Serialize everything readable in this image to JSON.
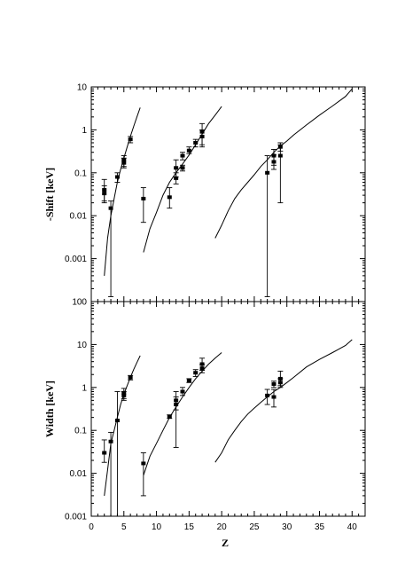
{
  "chart_data": [
    {
      "type": "scatter",
      "title": "",
      "xlabel": "",
      "ylabel": "-Shift  [keV]",
      "yscale": "log",
      "xlim": [
        0,
        42
      ],
      "ylim": [
        0.0001,
        10
      ],
      "ytick_labels": [
        "10",
        "1",
        "0.1",
        "0.01",
        "0.001"
      ],
      "grid": false,
      "curves": [
        {
          "x": [
            2,
            2.5,
            3,
            3.5,
            4,
            4.5,
            5,
            5.5,
            6,
            6.5,
            7,
            7.5
          ],
          "y": [
            0.0004,
            0.003,
            0.01,
            0.025,
            0.06,
            0.12,
            0.22,
            0.4,
            0.7,
            1.2,
            2.0,
            3.3
          ]
        },
        {
          "x": [
            8,
            9,
            10,
            11,
            12,
            13,
            14,
            15,
            16,
            17,
            18,
            19,
            20
          ],
          "y": [
            0.0014,
            0.005,
            0.012,
            0.03,
            0.06,
            0.1,
            0.16,
            0.26,
            0.45,
            0.8,
            1.4,
            2.2,
            3.5
          ]
        },
        {
          "x": [
            19,
            20,
            21,
            22,
            23,
            24,
            25,
            26,
            27,
            28,
            29,
            30,
            31,
            33,
            35,
            37,
            39,
            40
          ],
          "y": [
            0.003,
            0.006,
            0.013,
            0.025,
            0.04,
            0.06,
            0.09,
            0.14,
            0.2,
            0.3,
            0.42,
            0.55,
            0.75,
            1.3,
            2.2,
            3.6,
            6,
            9
          ]
        }
      ],
      "points": [
        {
          "x": 2,
          "y": 0.04,
          "lo": 0.022,
          "hi": 0.07
        },
        {
          "x": 2,
          "y": 0.033,
          "lo": 0.02,
          "hi": 0.05
        },
        {
          "x": 3,
          "y": 0.015,
          "lo": 0.00013,
          "hi": 0.022
        },
        {
          "x": 4,
          "y": 0.08,
          "lo": 0.06,
          "hi": 0.1
        },
        {
          "x": 5,
          "y": 0.2,
          "lo": 0.14,
          "hi": 0.25
        },
        {
          "x": 5,
          "y": 0.17,
          "lo": 0.13,
          "hi": 0.22
        },
        {
          "x": 6,
          "y": 0.6,
          "lo": 0.5,
          "hi": 0.7
        },
        {
          "x": 8,
          "y": 0.025,
          "lo": 0.007,
          "hi": 0.045
        },
        {
          "x": 12,
          "y": 0.027,
          "lo": 0.015,
          "hi": 0.045
        },
        {
          "x": 13,
          "y": 0.13,
          "lo": 0.08,
          "hi": 0.2
        },
        {
          "x": 13,
          "y": 0.075,
          "lo": 0.055,
          "hi": 0.1
        },
        {
          "x": 14,
          "y": 0.25,
          "lo": 0.2,
          "hi": 0.3
        },
        {
          "x": 14,
          "y": 0.13,
          "lo": 0.11,
          "hi": 0.15
        },
        {
          "x": 15,
          "y": 0.33,
          "lo": 0.28,
          "hi": 0.4
        },
        {
          "x": 16,
          "y": 0.5,
          "lo": 0.4,
          "hi": 0.6
        },
        {
          "x": 17,
          "y": 0.9,
          "lo": 0.4,
          "hi": 1.4
        },
        {
          "x": 17,
          "y": 0.7,
          "lo": 0.45,
          "hi": 1.0
        },
        {
          "x": 27,
          "y": 0.1,
          "lo": 0.00013,
          "hi": 0.25
        },
        {
          "x": 28,
          "y": 0.25,
          "lo": 0.15,
          "hi": 0.35
        },
        {
          "x": 28,
          "y": 0.18,
          "lo": 0.12,
          "hi": 0.26
        },
        {
          "x": 29,
          "y": 0.4,
          "lo": 0.32,
          "hi": 0.5
        },
        {
          "x": 29,
          "y": 0.25,
          "lo": 0.02,
          "hi": 0.45
        }
      ]
    },
    {
      "type": "scatter",
      "title": "",
      "xlabel": "Z",
      "ylabel": "Width  [keV]",
      "yscale": "log",
      "xlim": [
        0,
        42
      ],
      "ylim": [
        0.001,
        100
      ],
      "xticks": [
        0,
        5,
        10,
        15,
        20,
        25,
        30,
        35,
        40
      ],
      "ytick_labels": [
        "100",
        "10",
        "1",
        "0.1",
        "0.01",
        "0.001"
      ],
      "grid": false,
      "curves": [
        {
          "x": [
            2,
            2.5,
            3,
            3.5,
            4,
            4.5,
            5,
            5.5,
            6,
            6.5,
            7,
            7.5
          ],
          "y": [
            0.003,
            0.012,
            0.05,
            0.1,
            0.2,
            0.4,
            0.7,
            1.1,
            1.7,
            2.6,
            3.8,
            5.5
          ]
        },
        {
          "x": [
            8,
            9,
            10,
            11,
            12,
            13,
            14,
            15,
            16,
            17,
            18,
            19,
            20
          ],
          "y": [
            0.009,
            0.025,
            0.05,
            0.1,
            0.2,
            0.35,
            0.6,
            1.0,
            1.6,
            2.4,
            3.5,
            4.8,
            6.5
          ]
        },
        {
          "x": [
            19,
            20,
            21,
            22,
            23,
            24,
            25,
            26,
            27,
            28,
            29,
            30,
            31,
            33,
            35,
            37,
            39,
            40
          ],
          "y": [
            0.018,
            0.03,
            0.06,
            0.1,
            0.16,
            0.24,
            0.33,
            0.45,
            0.6,
            0.8,
            1.0,
            1.3,
            1.7,
            3.0,
            4.5,
            6.5,
            9.5,
            13
          ]
        }
      ],
      "points": [
        {
          "x": 2,
          "y": 0.03,
          "lo": 0.018,
          "hi": 0.06
        },
        {
          "x": 3,
          "y": 0.055,
          "lo": 0.001,
          "hi": 0.09
        },
        {
          "x": 4,
          "y": 0.17,
          "lo": 0.001,
          "hi": 0.8
        },
        {
          "x": 5,
          "y": 0.75,
          "lo": 0.55,
          "hi": 0.95
        },
        {
          "x": 5,
          "y": 0.65,
          "lo": 0.5,
          "hi": 0.8
        },
        {
          "x": 6,
          "y": 1.7,
          "lo": 1.5,
          "hi": 1.9
        },
        {
          "x": 8,
          "y": 0.017,
          "lo": 0.003,
          "hi": 0.03
        },
        {
          "x": 12,
          "y": 0.21,
          "lo": 0.19,
          "hi": 0.23
        },
        {
          "x": 13,
          "y": 0.5,
          "lo": 0.3,
          "hi": 0.8
        },
        {
          "x": 13,
          "y": 0.4,
          "lo": 0.04,
          "hi": 0.6
        },
        {
          "x": 14,
          "y": 0.8,
          "lo": 0.65,
          "hi": 1.0
        },
        {
          "x": 15,
          "y": 1.45,
          "lo": 1.3,
          "hi": 1.6
        },
        {
          "x": 16,
          "y": 2.2,
          "lo": 1.8,
          "hi": 2.6
        },
        {
          "x": 17,
          "y": 3.5,
          "lo": 2.5,
          "hi": 4.8
        },
        {
          "x": 17,
          "y": 2.8,
          "lo": 2.2,
          "hi": 3.4
        },
        {
          "x": 27,
          "y": 0.65,
          "lo": 0.4,
          "hi": 0.9
        },
        {
          "x": 28,
          "y": 1.2,
          "lo": 1.0,
          "hi": 1.4
        },
        {
          "x": 28,
          "y": 0.6,
          "lo": 0.35,
          "hi": 0.9
        },
        {
          "x": 29,
          "y": 1.6,
          "lo": 1.1,
          "hi": 2.4
        },
        {
          "x": 29,
          "y": 1.3,
          "lo": 1.0,
          "hi": 1.6
        }
      ]
    }
  ]
}
